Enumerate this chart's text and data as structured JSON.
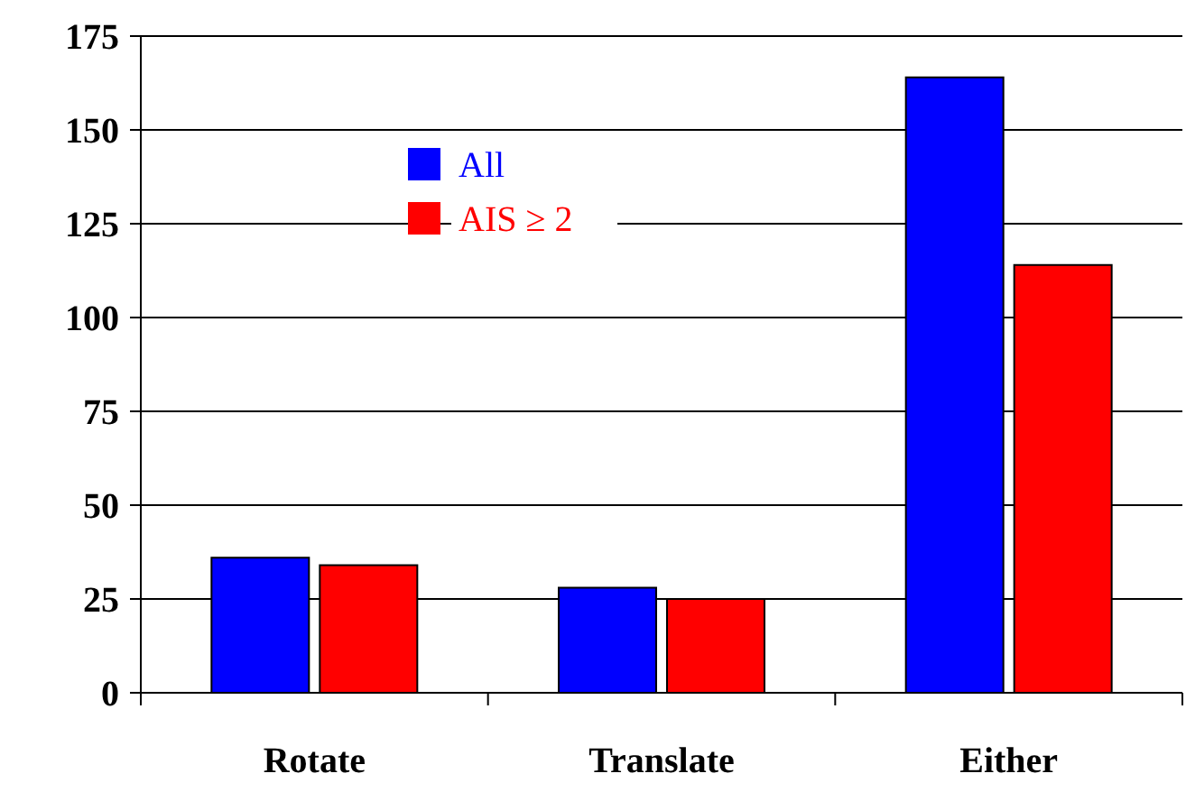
{
  "chart_data": {
    "type": "bar",
    "categories": [
      "Rotate",
      "Translate",
      "Either"
    ],
    "series": [
      {
        "name": "All",
        "color": "#0000ff",
        "values": [
          36,
          28,
          164
        ]
      },
      {
        "name": "AIS ≥ 2",
        "color": "#ff0000",
        "values": [
          34,
          25,
          114
        ]
      }
    ],
    "ylim": [
      0,
      175
    ],
    "yticks": [
      0,
      25,
      50,
      75,
      100,
      125,
      150,
      175
    ],
    "grid": "y",
    "legend": "top left"
  }
}
